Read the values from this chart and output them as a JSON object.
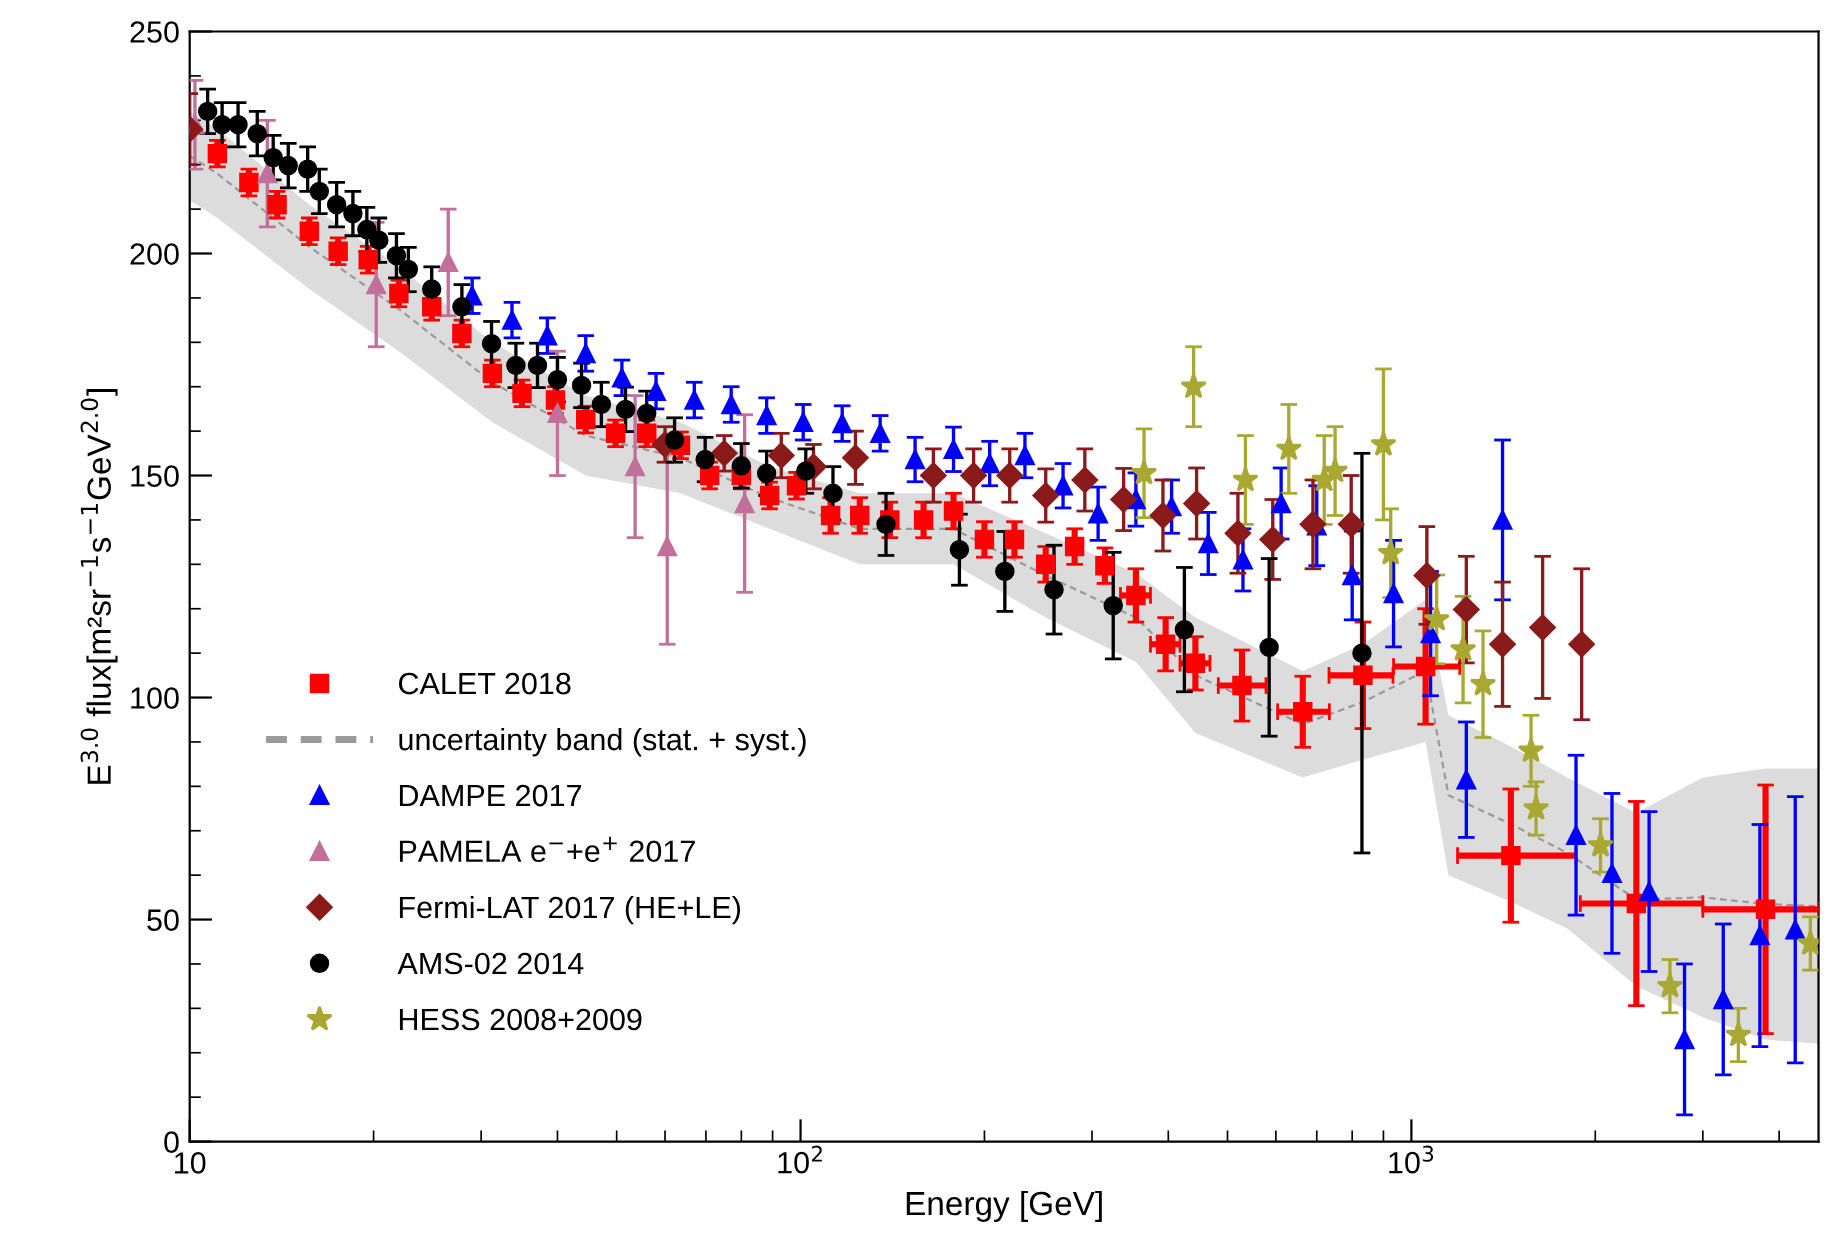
{
  "chart_data": {
    "type": "scatter",
    "xlabel": "Energy [GeV]",
    "ylabel": "E$^{3.0}$ flux[m²sr$^{−1}$s$^{−1}$GeV$^{2.0}$]",
    "log": "x",
    "xlim": [
      10,
      4640
    ],
    "xticks": [
      10,
      {
        "value": 100,
        "label": "10$^{2}$"
      },
      {
        "value": 1000,
        "label": "10$^{3}$"
      }
    ],
    "ylim": [
      0,
      250
    ],
    "yticks": [
      0,
      50,
      100,
      150,
      200,
      250
    ],
    "grid": false,
    "legend": "bottom left",
    "series": [
      {
        "name": "CALET 2018",
        "type": "scatter",
        "marker": "square",
        "color": "#ff0000",
        "x": [
          11.1,
          12.5,
          13.9,
          15.7,
          17.5,
          19.6,
          22,
          24.9,
          27.9,
          31.3,
          35,
          39.7,
          44.5,
          49.8,
          56,
          63.6,
          71,
          80,
          89,
          98.5,
          112,
          125,
          140,
          159,
          178,
          200,
          224,
          252,
          281,
          315,
          354,
          396,
          443,
          528,
          664,
          833,
          1055,
          1455,
          2335,
          3800
        ],
        "values": [
          222.5,
          216,
          211,
          205,
          200.5,
          198.6,
          191,
          188,
          182,
          173,
          168.5,
          167,
          162.6,
          159.5,
          159.5,
          156.8,
          150,
          150,
          145.5,
          147.7,
          141,
          141,
          140,
          140,
          142,
          135.6,
          135.6,
          130,
          134,
          129.7,
          123,
          112,
          107.7,
          102.7,
          96.8,
          105,
          107,
          64.4,
          53.6,
          52.3
        ],
        "errors": [
          3,
          3,
          3,
          3,
          3,
          3,
          3,
          3,
          3,
          3,
          3,
          3,
          3,
          3,
          3,
          3,
          3,
          3,
          3,
          3,
          4,
          4,
          4,
          4,
          4,
          4,
          4,
          4,
          4,
          4,
          6,
          6,
          6,
          8,
          8,
          12,
          13,
          15,
          23,
          28
        ],
        "xerrors": [
          null,
          null,
          null,
          null,
          null,
          null,
          null,
          null,
          null,
          null,
          null,
          null,
          null,
          null,
          null,
          null,
          null,
          null,
          null,
          null,
          null,
          null,
          null,
          null,
          null,
          null,
          null,
          null,
          null,
          null,
          [
            334,
            374
          ],
          [
            374,
            418
          ],
          [
            418,
            468
          ],
          [
            483,
            578
          ],
          [
            604,
            734
          ],
          [
            733,
            933
          ],
          [
            935,
            1200
          ],
          [
            1190,
            1860
          ],
          [
            1890,
            3000
          ],
          [
            3000,
            4640
          ]
        ]
      },
      {
        "name": "uncertainty band (stat. + syst.)",
        "type": "line",
        "line_style": "dashed",
        "color": "#9a9a9a",
        "x": [
          10,
          11.1,
          15.7,
          22,
          31.3,
          44.5,
          63.6,
          89,
          125,
          178,
          252,
          354,
          443,
          664,
          833,
          1055,
          1150,
          1455,
          1800,
          2335,
          3000,
          3800,
          4640
        ],
        "values": [
          222,
          218,
          201.5,
          187.5,
          171,
          159,
          154,
          145,
          138,
          138,
          127.5,
          118,
          105,
          94,
          99,
          106,
          78,
          71.5,
          65,
          54.5,
          55,
          53.5,
          53
        ],
        "lower": [
          212,
          208,
          192,
          178,
          162,
          150,
          146,
          138,
          130,
          130,
          118,
          108,
          92,
          82,
          86,
          90,
          60,
          54,
          48,
          35,
          28,
          23,
          22
        ],
        "upper": [
          232,
          228,
          211,
          197,
          180,
          168,
          162,
          152,
          146,
          146,
          137,
          128,
          118,
          106,
          112,
          122,
          96,
          89,
          82,
          74,
          82,
          84,
          84
        ]
      },
      {
        "name": "DAMPE 2017",
        "type": "scatter",
        "marker": "triangle",
        "color": "#0000ff",
        "x": [
          29,
          33.7,
          38.5,
          44.5,
          51,
          58,
          67,
          77,
          88,
          101,
          117,
          135,
          154,
          178,
          204,
          233,
          269,
          307,
          354,
          405,
          465,
          530,
          612,
          700,
          800,
          935,
          1075,
          1230,
          1410,
          1860,
          2130,
          2450,
          2800,
          3240,
          3720,
          4250
        ],
        "values": [
          190.5,
          185,
          181.5,
          177.5,
          172,
          169,
          167,
          166,
          163.5,
          162,
          161.7,
          159.5,
          153.6,
          155.9,
          152.7,
          154.5,
          147.7,
          141.4,
          144.6,
          143,
          134.7,
          131,
          143.7,
          138.7,
          127.5,
          123.4,
          114.4,
          81.5,
          140,
          69,
          60.4,
          56.3,
          23,
          32,
          46.4,
          47.7
        ],
        "errors": [
          4,
          4,
          4,
          4,
          4,
          4,
          4,
          4,
          4,
          4,
          4,
          4,
          5,
          5,
          5,
          5,
          5,
          6,
          6,
          6,
          7,
          7,
          8,
          9,
          10,
          12,
          14,
          13,
          18,
          18,
          18,
          18,
          17,
          17,
          25,
          30
        ]
      },
      {
        "name": "PAMELA e$^{−}$+e$^{+}$ 2017",
        "type": "scatter",
        "marker": "triangle",
        "color": "#c0709a",
        "x": [
          10.2,
          13.4,
          20.2,
          26.5,
          40,
          53.6,
          60.5,
          81
        ],
        "values": [
          229,
          218,
          193,
          198,
          164,
          152,
          134,
          143.7
        ],
        "errors": [
          10,
          12,
          14,
          12,
          14,
          16,
          22,
          20
        ]
      },
      {
        "name": "Fermi-LAT 2017 (HE+LE)",
        "type": "scatter",
        "marker": "diamond",
        "color": "#8b1a1a",
        "x": [
          10,
          60,
          75,
          93,
          105,
          123,
          165,
          192,
          220,
          252,
          292,
          338,
          392,
          445,
          520,
          593,
          690,
          797,
          1060,
          1230,
          1410,
          1640,
          1900
        ],
        "values": [
          228,
          157,
          155,
          154.5,
          152,
          154,
          150,
          150,
          150,
          145.5,
          149,
          144.6,
          141,
          143.7,
          137,
          135.6,
          139,
          139,
          127.5,
          119.8,
          112,
          115.8,
          112
        ],
        "errors": [
          8,
          4,
          4,
          5,
          5,
          6,
          6,
          6,
          6,
          6,
          7,
          7,
          8,
          8,
          9,
          9,
          10,
          11,
          11,
          12,
          14,
          16,
          17
        ]
      },
      {
        "name": "AMS-02 2014",
        "type": "scatter",
        "marker": "circle",
        "color": "#000000",
        "x": [
          10.7,
          11.3,
          12,
          12.9,
          13.7,
          14.5,
          15.6,
          16.3,
          17.4,
          18.5,
          19.5,
          20.4,
          21.8,
          22.8,
          24.9,
          27.9,
          31.2,
          34.2,
          37.1,
          40,
          43.8,
          47.2,
          51.7,
          56,
          62.2,
          69.8,
          80,
          88,
          102,
          113,
          138,
          182,
          216,
          260,
          325,
          425,
          585,
          830
        ],
        "values": [
          232,
          229,
          229,
          227,
          221.6,
          219.8,
          219,
          214,
          211,
          209,
          205.4,
          203,
          199.5,
          196.4,
          192,
          188,
          179.7,
          174.8,
          174.8,
          171.6,
          170.3,
          166,
          164.9,
          164,
          158,
          153.6,
          152.2,
          150.5,
          151,
          146,
          139,
          133.3,
          128.4,
          124.3,
          120.7,
          115.3,
          111.3,
          110
        ],
        "errors": [
          5,
          5,
          5,
          5,
          5,
          5,
          5,
          5,
          5,
          5,
          5,
          5,
          5,
          5,
          5,
          5,
          5,
          5,
          5,
          5,
          5,
          5,
          5,
          5,
          5,
          5,
          5,
          5,
          5,
          6,
          7,
          8,
          9,
          10,
          12,
          14,
          20,
          45
        ]
      },
      {
        "name": "HESS 2008+2009",
        "type": "scatter",
        "marker": "star",
        "color": "#a8a832",
        "x": [
          365,
          440,
          535,
          630,
          720,
          750,
          900,
          925,
          1100,
          1215,
          1310,
          1570,
          1600,
          2040,
          2650,
          3430,
          4500
        ],
        "values": [
          150.5,
          170,
          149,
          156,
          149,
          151,
          157,
          132.5,
          117.6,
          110.8,
          103,
          88,
          75,
          66.7,
          35,
          24,
          44.6
        ],
        "errors": [
          10,
          9,
          10,
          10,
          10,
          10,
          17,
          10,
          10,
          12,
          12,
          8,
          6,
          6,
          6,
          6,
          6
        ]
      }
    ]
  }
}
